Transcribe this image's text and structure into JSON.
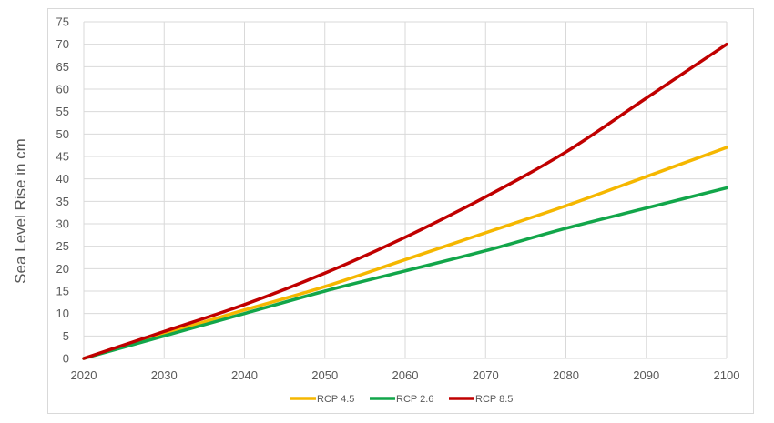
{
  "chart_data": {
    "type": "line",
    "title": "",
    "xlabel": "",
    "ylabel": "Sea Level Rise in cm",
    "xlim": [
      2020,
      2100
    ],
    "ylim": [
      0,
      75
    ],
    "x_ticks": [
      2020,
      2030,
      2040,
      2050,
      2060,
      2070,
      2080,
      2090,
      2100
    ],
    "y_ticks": [
      0,
      5,
      10,
      15,
      20,
      25,
      30,
      35,
      40,
      45,
      50,
      55,
      60,
      65,
      70,
      75
    ],
    "grid": true,
    "legend_position": "bottom",
    "x": [
      2020,
      2030,
      2040,
      2050,
      2060,
      2070,
      2080,
      2090,
      2100
    ],
    "series": [
      {
        "name": "RCP 4.5",
        "color": "#f5b700",
        "values": [
          0,
          5.5,
          10.8,
          16,
          22,
          28,
          34,
          40.5,
          47
        ]
      },
      {
        "name": "RCP 2.6",
        "color": "#12a64a",
        "values": [
          0,
          5,
          10,
          15,
          19.5,
          24,
          29,
          33.5,
          38
        ]
      },
      {
        "name": "RCP 8.5",
        "color": "#c00000",
        "values": [
          0,
          6,
          12,
          19,
          27,
          36,
          46,
          58,
          70
        ]
      }
    ]
  }
}
